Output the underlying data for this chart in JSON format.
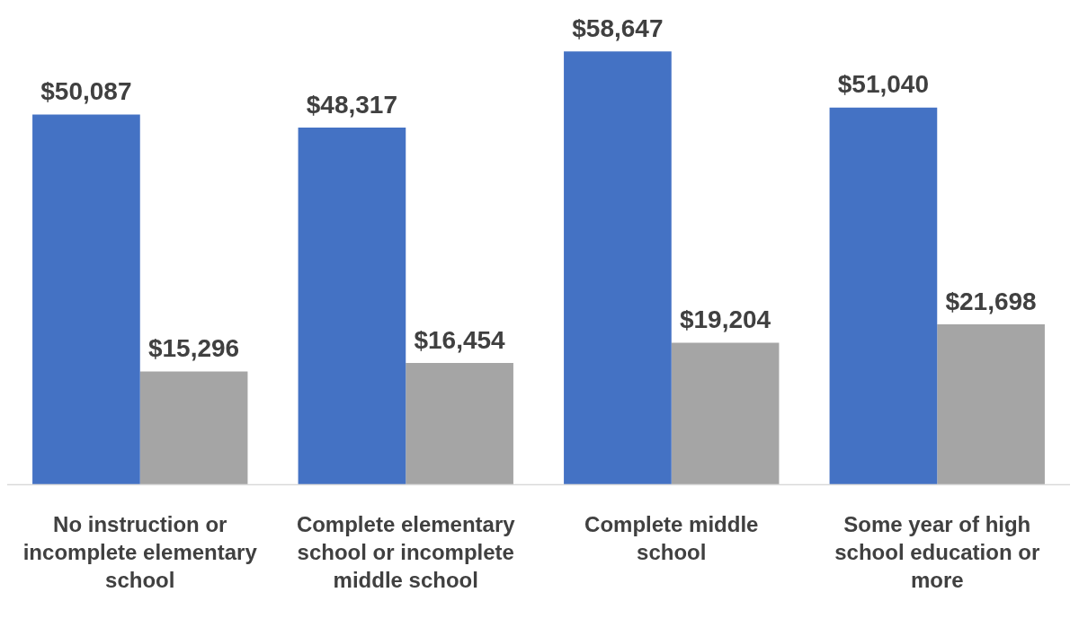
{
  "chart_data": {
    "type": "bar",
    "categories": [
      "No instruction or incomplete elementary school",
      "Complete elementary school or incomplete middle school",
      "Complete middle school",
      "Some year of high school education or more"
    ],
    "series": [
      {
        "color": "#4472c4",
        "values": [
          50087,
          48317,
          58647,
          51040
        ],
        "value_labels": [
          "$50,087",
          "$48,317",
          "$58,647",
          "$51,040"
        ]
      },
      {
        "color": "#a5a5a5",
        "values": [
          15296,
          16454,
          19204,
          21698
        ],
        "value_labels": [
          "$15,296",
          "$16,454",
          "$19,204",
          "$21,698"
        ]
      }
    ],
    "tick_labels": "x",
    "grid": false,
    "legend": false
  }
}
